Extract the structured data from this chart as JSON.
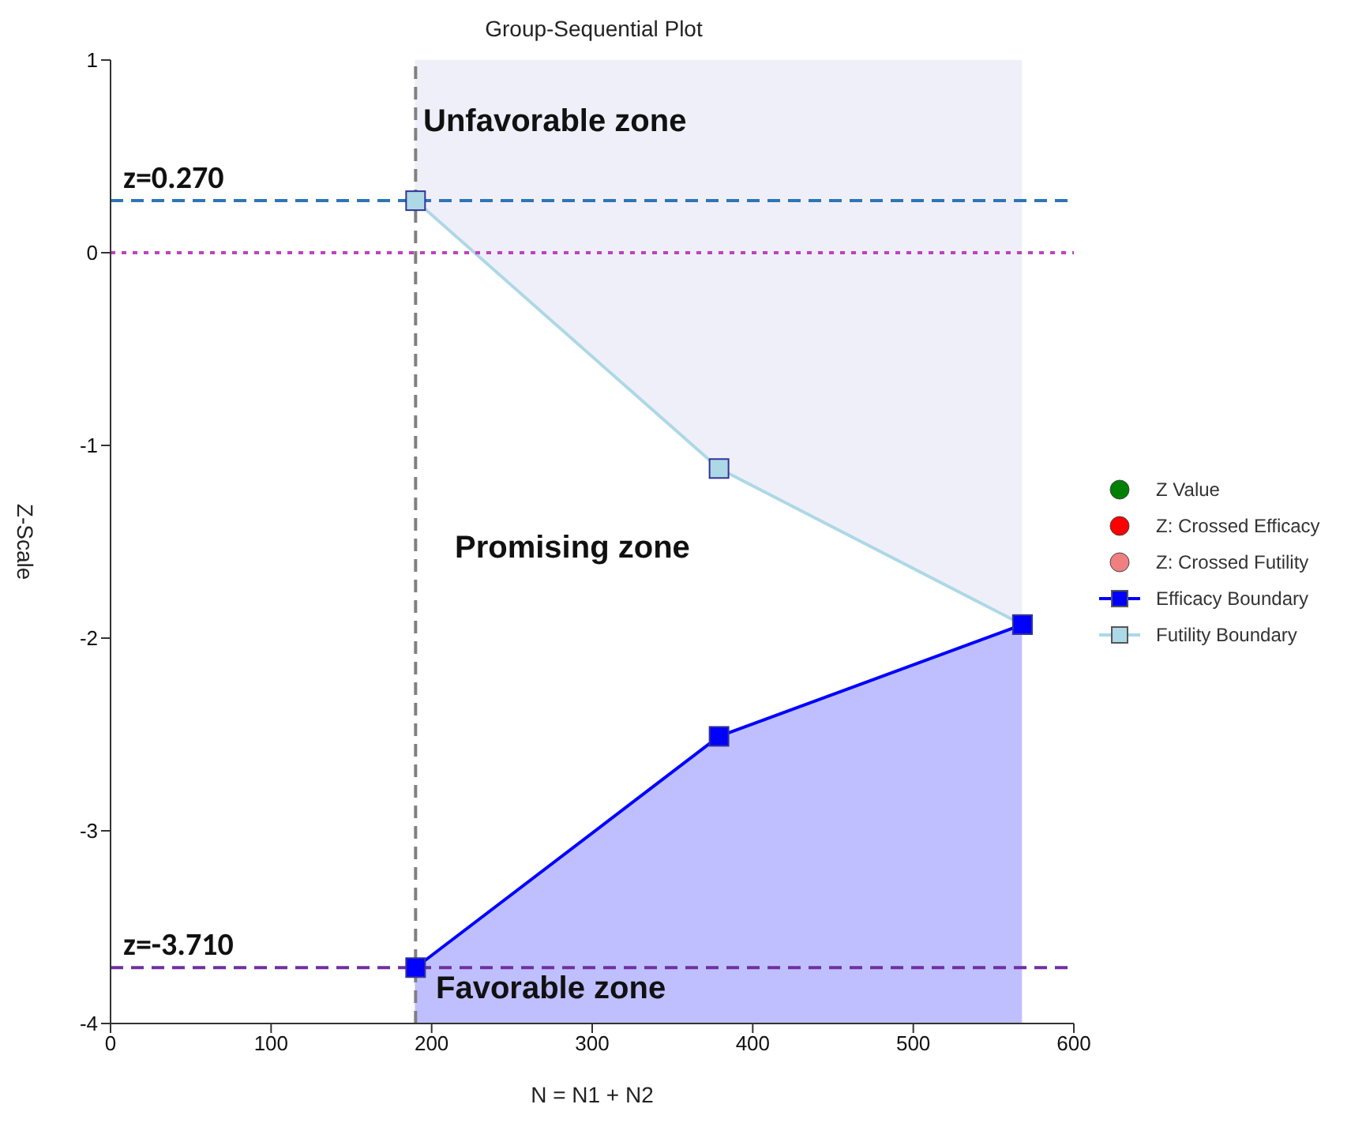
{
  "chart_data": {
    "type": "line",
    "title": "Group-Sequential Plot",
    "xlabel": "N = N1 + N2",
    "ylabel": "Z-Scale",
    "x": [
      190,
      379,
      568
    ],
    "series": [
      {
        "name": "Z Value",
        "type": "scatter",
        "color": "#008000",
        "marker": "circle",
        "values": [
          null,
          null,
          null
        ]
      },
      {
        "name": "Z: Crossed Efficacy",
        "type": "scatter",
        "color": "#ff0000",
        "marker": "circle",
        "values": [
          null,
          null,
          null
        ]
      },
      {
        "name": "Z: Crossed Futility",
        "type": "scatter",
        "color": "#f08080",
        "marker": "circle",
        "values": [
          null,
          null,
          null
        ]
      },
      {
        "name": "Efficacy Boundary",
        "color": "#0000ff",
        "marker": "square",
        "values": [
          -3.71,
          -2.51,
          -1.93
        ]
      },
      {
        "name": "Futility Boundary",
        "color": "#add8e6",
        "marker": "square",
        "values": [
          0.27,
          -1.12,
          -1.93
        ]
      }
    ],
    "ref_lines": [
      {
        "axis": "y",
        "value": 0.27,
        "label": "z=0.270",
        "color": "#2e75b6",
        "line_style": "dashed"
      },
      {
        "axis": "y",
        "value": 0,
        "label": null,
        "color": "#c040c0",
        "line_style": "dotted"
      },
      {
        "axis": "y",
        "value": -3.71,
        "label": "z=-3.710",
        "color": "#7030a0",
        "line_style": "dashed"
      },
      {
        "axis": "x",
        "value": 190,
        "label": null,
        "color": "#808080",
        "line_style": "dashed"
      }
    ],
    "annotations": [
      "Unfavorable zone",
      "Promising zone",
      "Favorable zone"
    ],
    "xlim": [
      0,
      600
    ],
    "xticks": [
      0,
      100,
      200,
      300,
      400,
      500,
      600
    ],
    "ylim": [
      -4,
      1
    ],
    "yticks": [
      -4,
      -3,
      -2,
      -1,
      0,
      1
    ],
    "grid": false,
    "legend": "right",
    "line_style": "solid"
  }
}
